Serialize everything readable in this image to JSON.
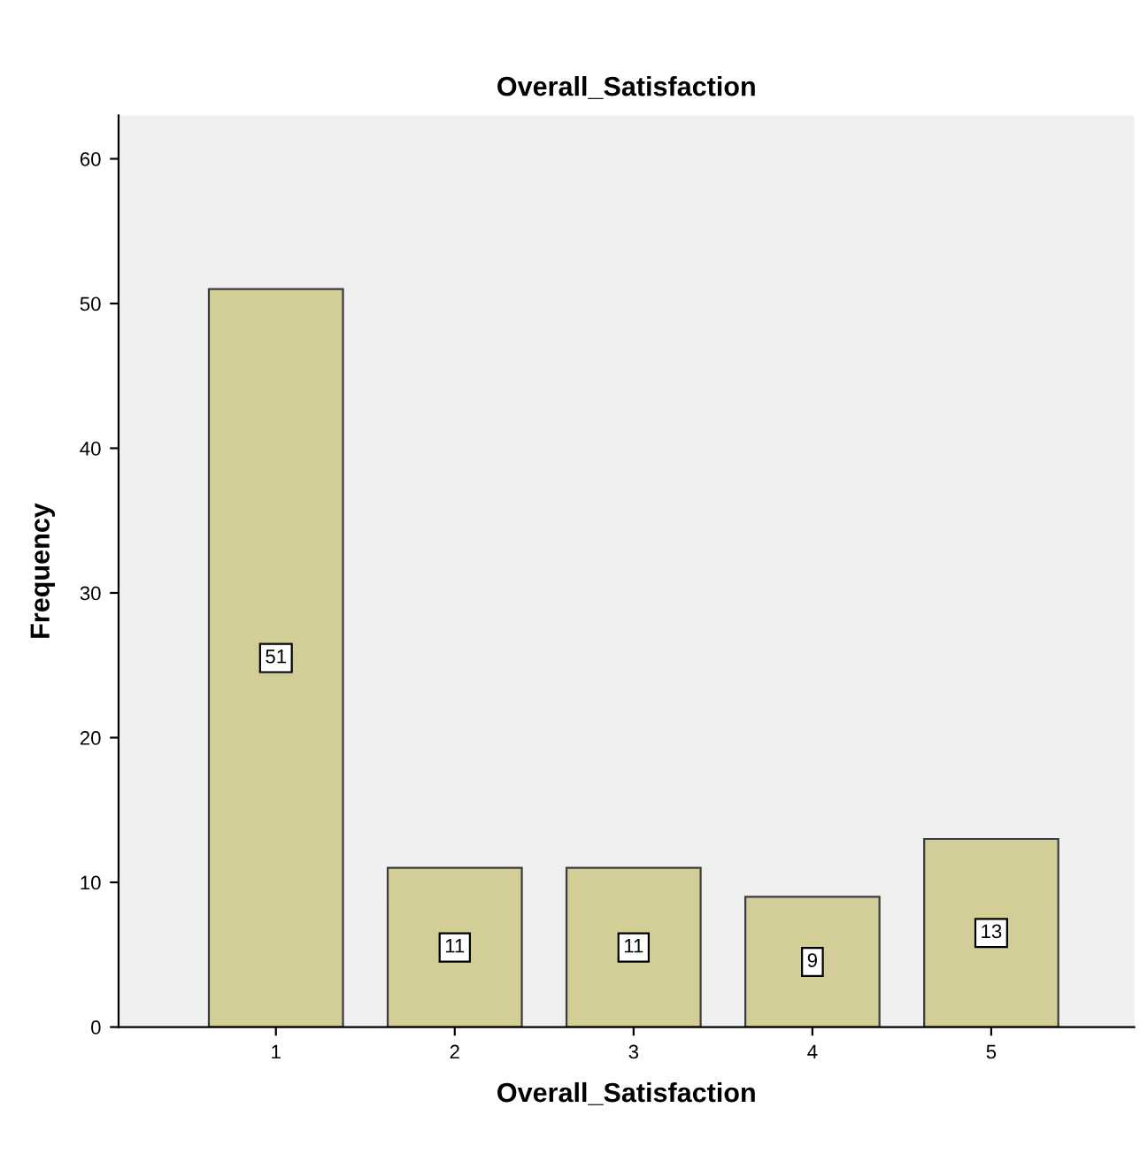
{
  "chart_data": {
    "type": "bar",
    "title": "Overall_Satisfaction",
    "xlabel": "Overall_Satisfaction",
    "ylabel": "Frequency",
    "categories": [
      "1",
      "2",
      "3",
      "4",
      "5"
    ],
    "values": [
      51,
      11,
      11,
      9,
      13
    ],
    "color": "#d3ce97",
    "ylim": [
      0,
      63
    ],
    "yticks": [
      0,
      10,
      20,
      30,
      40,
      50,
      60
    ],
    "data_labels": true,
    "grid": false,
    "legend": false
  }
}
